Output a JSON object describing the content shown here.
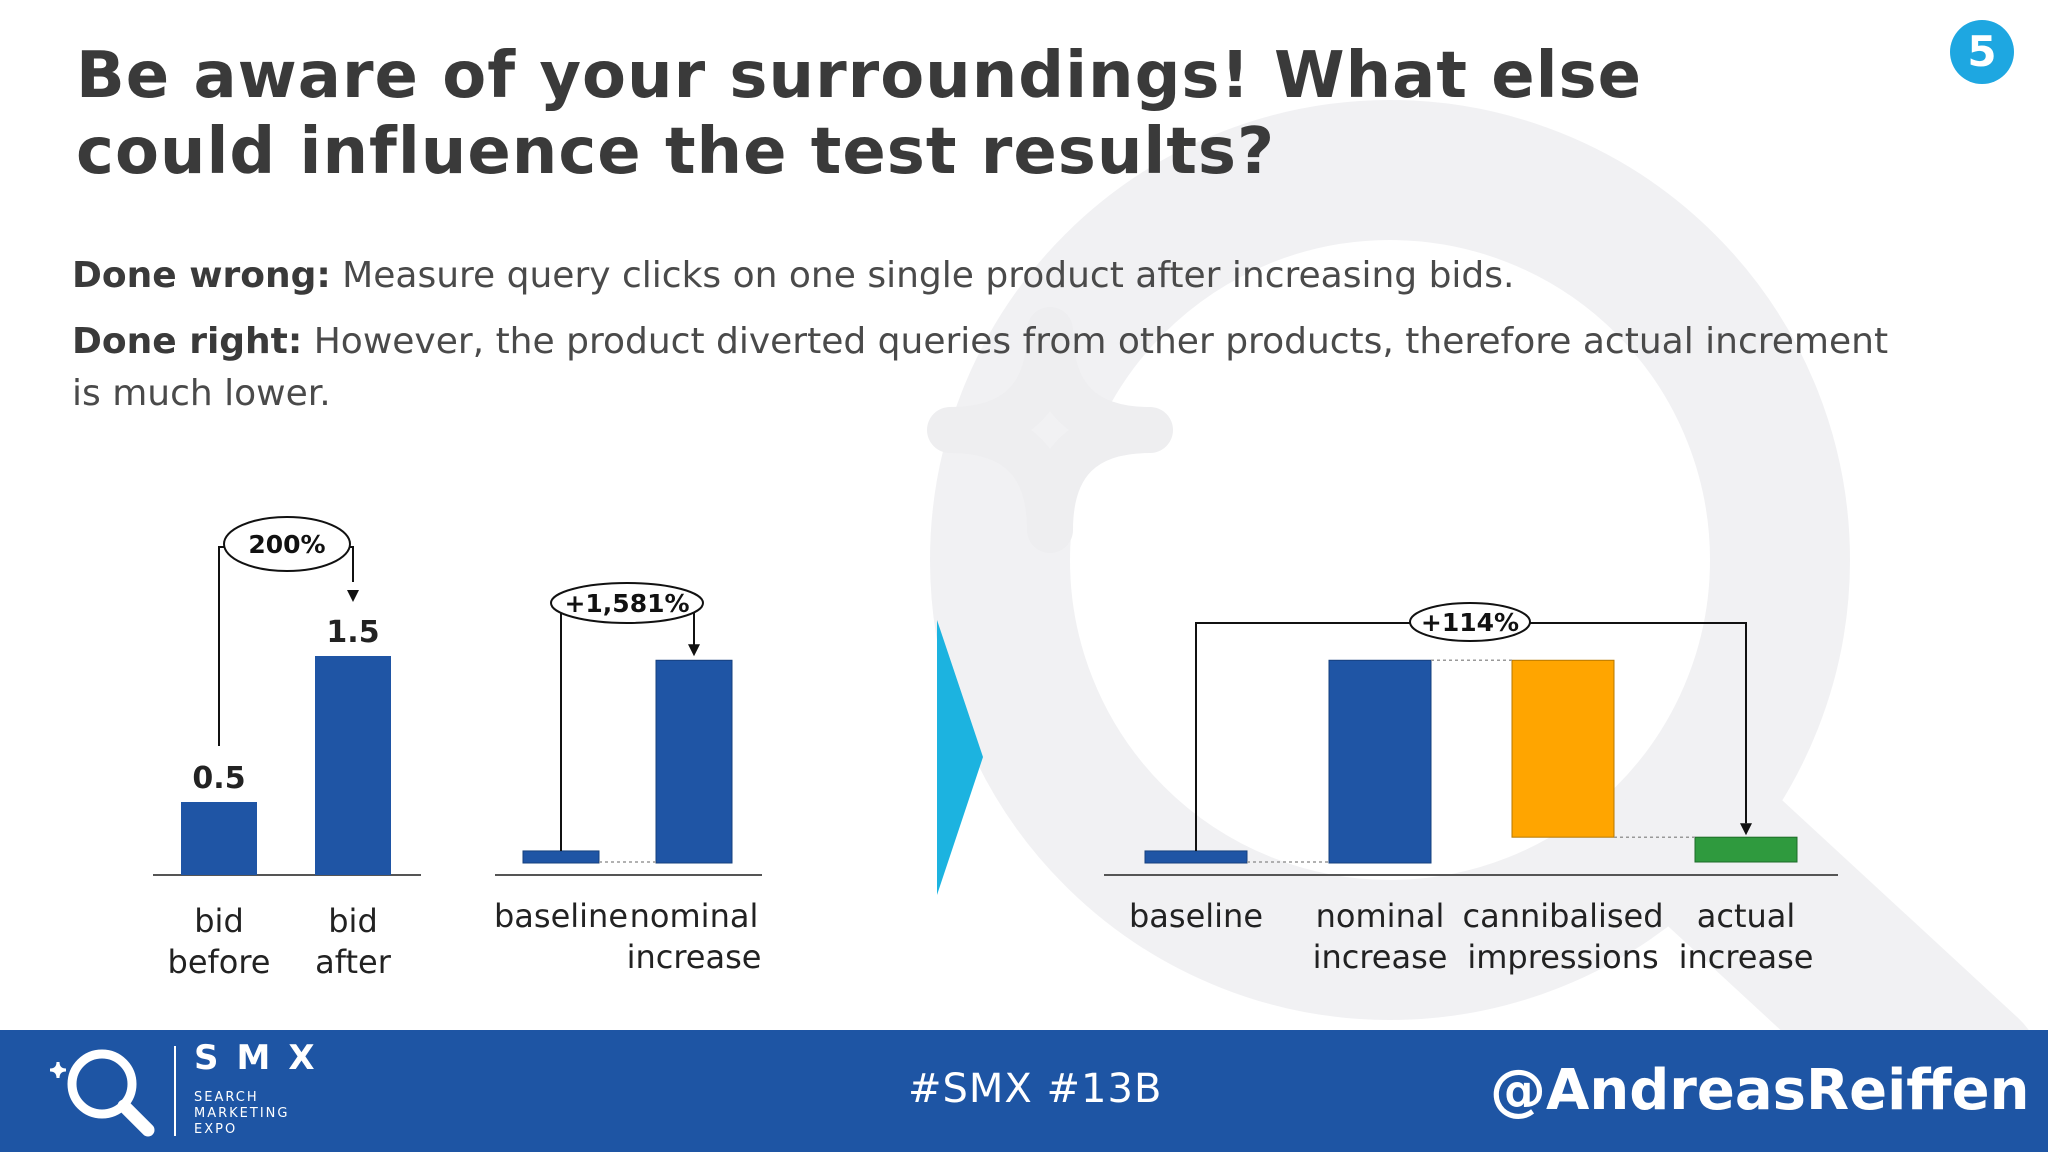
{
  "slide_number": "5",
  "title": "Be aware of your surroundings! What else could influence the test results?",
  "done_wrong": {
    "label": "Done wrong:",
    "text": " Measure query clicks on one single product after increasing bids."
  },
  "done_right": {
    "label": "Done right:",
    "text": " However, the product diverted queries from other products, therefore actual increment is much lower."
  },
  "colors": {
    "bar_blue": "#1f55a5",
    "bar_orange": "#ffa500",
    "bar_green": "#2f9a3e",
    "accent_label": "#f0a500",
    "arrow_cyan": "#1cb3e0",
    "footer_bg": "#1e55a4",
    "badge_bg": "#1ea7e1"
  },
  "chart_data": [
    {
      "type": "bar",
      "categories": [
        "bid before",
        "bid after"
      ],
      "category_lines": [
        [
          "bid",
          "before"
        ],
        [
          "bid",
          "after"
        ]
      ],
      "values": [
        0.5,
        1.5
      ],
      "data_labels": [
        "0.5",
        "1.5"
      ],
      "annotation": "200%"
    },
    {
      "type": "bar",
      "categories": [
        "baseline",
        "nominal increase"
      ],
      "category_lines": [
        [
          "baseline"
        ],
        [
          "nominal",
          "increase"
        ]
      ],
      "values": [
        1,
        16.81
      ],
      "annotation": "+1,581%"
    },
    {
      "type": "bar",
      "subtype": "waterfall",
      "categories": [
        "baseline",
        "nominal increase",
        "cannibalised impressions",
        "actual increase"
      ],
      "category_lines": [
        [
          "baseline"
        ],
        [
          "nominal",
          "increase"
        ],
        [
          "cannibalised",
          "impressions"
        ],
        [
          "actual",
          "increase"
        ]
      ],
      "values": [
        1,
        16.81,
        -14.67,
        2.14
      ],
      "highlight_category": "cannibalised impressions",
      "annotation": "+114%"
    }
  ],
  "footer": {
    "brand": "SMX",
    "brand_sub": [
      "SEARCH",
      "MARKETING",
      "EXPO"
    ],
    "hashtags": "#SMX #13B",
    "handle": "@AndreasReiffen"
  }
}
